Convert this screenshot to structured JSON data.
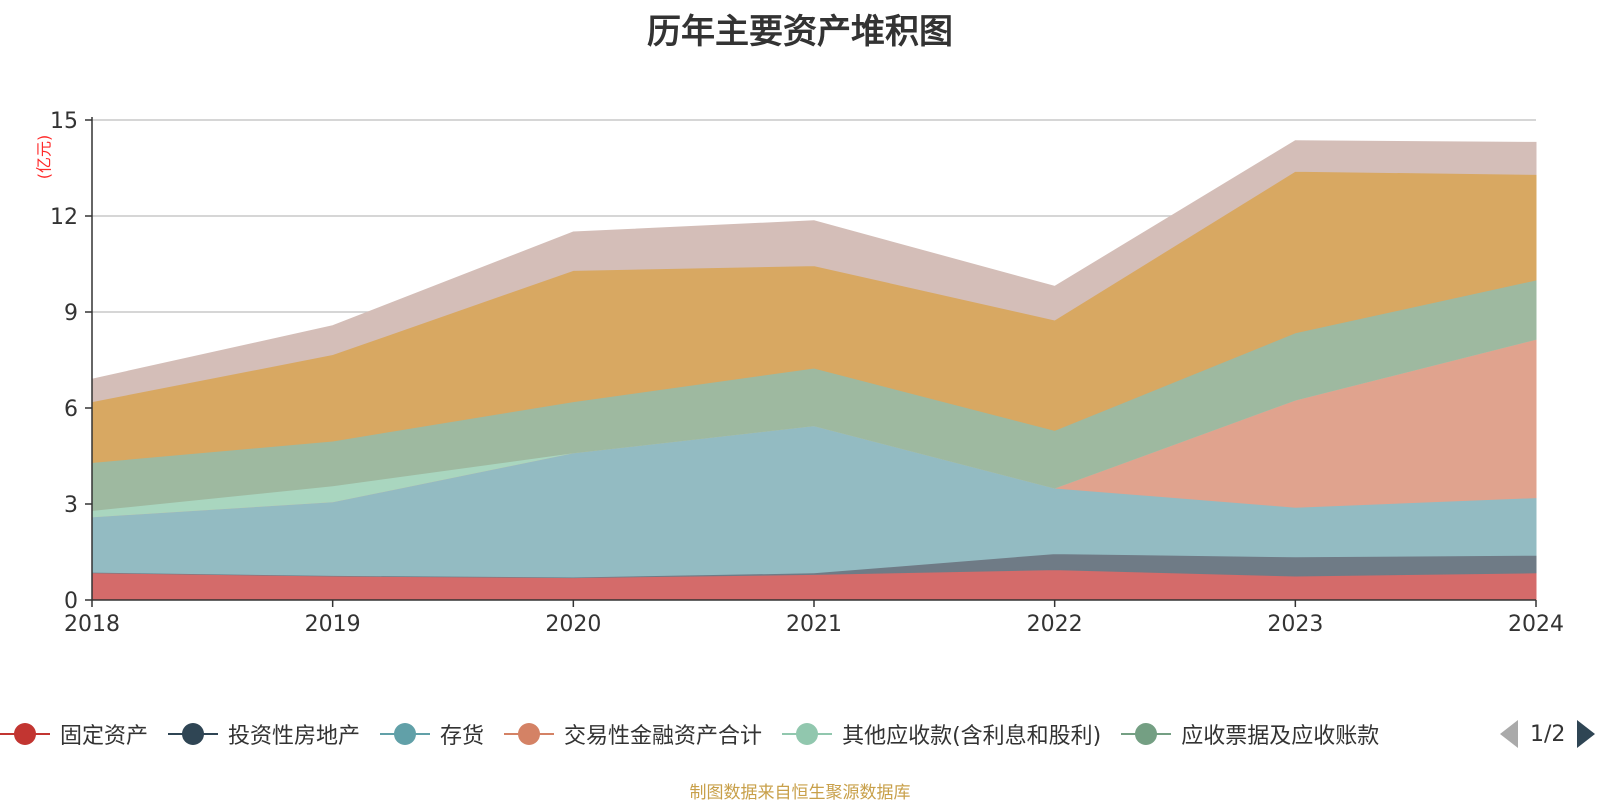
{
  "title": "历年主要资产堆积图",
  "unit_label": "(亿元)",
  "footer": "制图数据来自恒生聚源数据库",
  "pager": {
    "text": "1/2"
  },
  "legend": [
    {
      "name": "固定资产",
      "color": "#c23531"
    },
    {
      "name": "投资性房地产",
      "color": "#2f4554"
    },
    {
      "name": "存货",
      "color": "#61a0a8"
    },
    {
      "name": "交易性金融资产合计",
      "color": "#d48265"
    },
    {
      "name": "其他应收款(含利息和股利)",
      "color": "#91c7ae"
    },
    {
      "name": "应收票据及应收账款",
      "color": "#749f83"
    }
  ],
  "chart_data": {
    "type": "area",
    "stacked": true,
    "x": [
      "2018",
      "2019",
      "2020",
      "2021",
      "2022",
      "2023",
      "2024"
    ],
    "ylim": [
      0,
      15
    ],
    "yticks": [
      0,
      3,
      6,
      9,
      12,
      15
    ],
    "grid": true,
    "series": [
      {
        "name": "固定资产",
        "color": "#d46b6a",
        "values": [
          0.85,
          0.75,
          0.7,
          0.8,
          0.95,
          0.75,
          0.85
        ]
      },
      {
        "name": "投资性房地产",
        "color": "#6f7b86",
        "values": [
          0.02,
          0.02,
          0.02,
          0.05,
          0.5,
          0.6,
          0.55
        ]
      },
      {
        "name": "存货",
        "color": "#93bbc2",
        "values": [
          1.73,
          2.3,
          3.88,
          4.6,
          2.05,
          1.55,
          1.8
        ]
      },
      {
        "name": "交易性金融资产合计",
        "color": "#e0a38e",
        "values": [
          0,
          0,
          0,
          0,
          0,
          3.35,
          4.95
        ]
      },
      {
        "name": "其他应收款(含利息和股利)",
        "color": "#a9d6bf",
        "values": [
          0.2,
          0.5,
          0,
          0,
          0,
          0,
          0
        ]
      },
      {
        "name": "应收票据及应收账款",
        "color": "#9eb9a0",
        "values": [
          1.5,
          1.4,
          1.6,
          1.8,
          1.8,
          2.1,
          1.85
        ]
      },
      {
        "name": "",
        "color": "#d8a862",
        "values": [
          1.9,
          2.7,
          4.1,
          3.2,
          3.45,
          5.05,
          3.3
        ]
      },
      {
        "name": "",
        "color": "#d4beb8",
        "values": [
          0.7,
          0.9,
          1.2,
          1.4,
          1.05,
          0.95,
          1.0
        ]
      }
    ]
  }
}
